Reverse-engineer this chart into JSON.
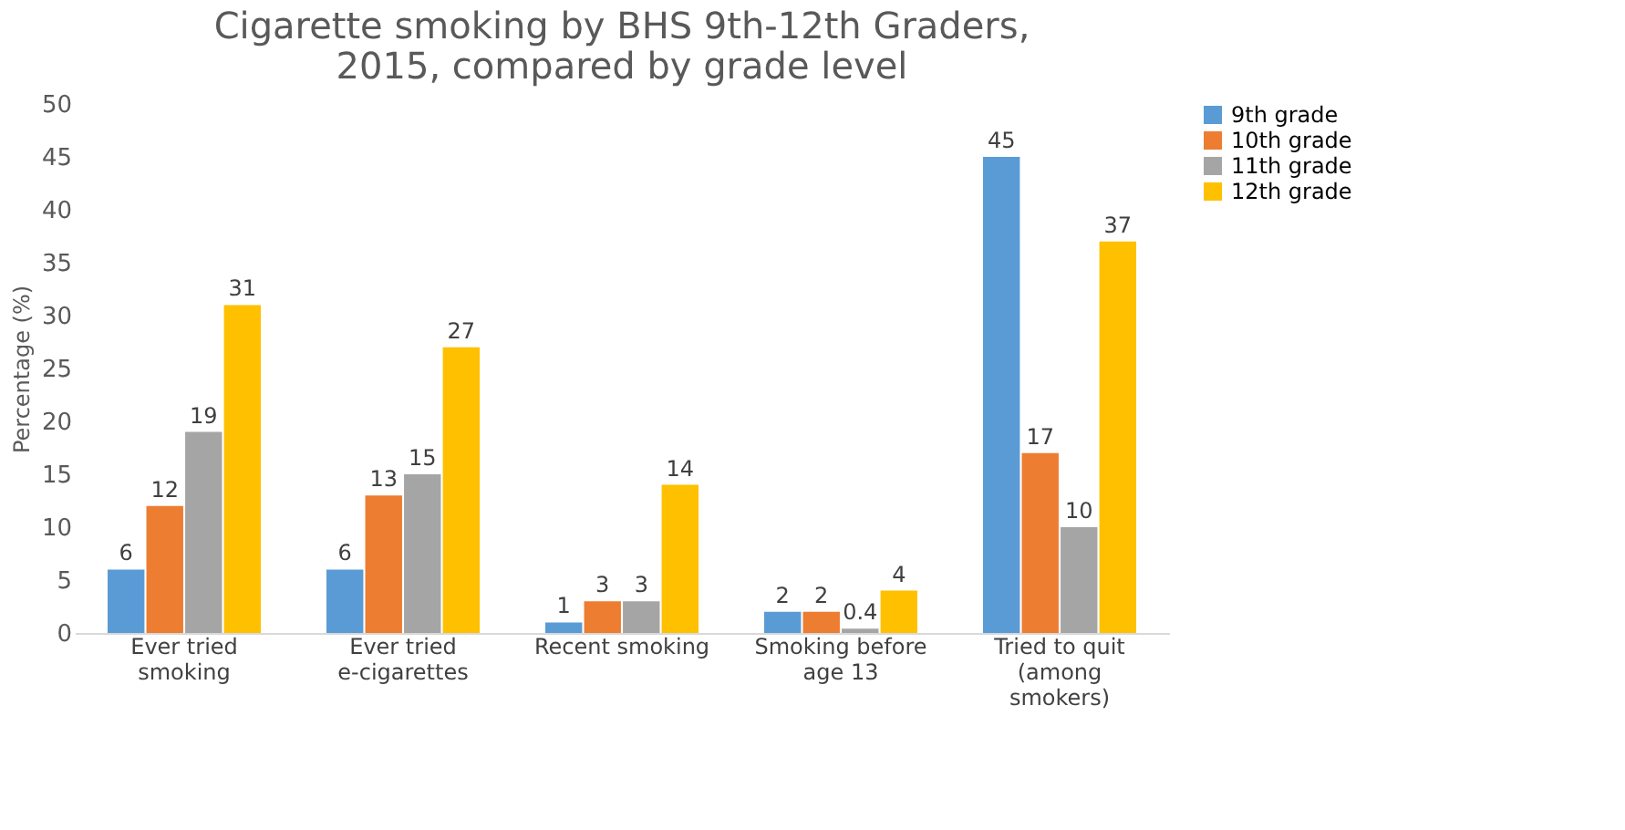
{
  "chart_data": {
    "type": "bar",
    "title": "Cigarette smoking by BHS 9th-12th Graders, 2015, compared by grade level",
    "ylabel": "Percentage (%)",
    "categories": [
      "Ever tried smoking",
      "Ever tried e-cigarettes",
      "Recent smoking",
      "Smoking before age 13",
      "Tried to quit (among smokers)"
    ],
    "series": [
      {
        "name": "9th grade",
        "color": "#5b9bd5",
        "values": [
          6,
          6,
          1,
          2,
          45
        ]
      },
      {
        "name": "10th grade",
        "color": "#ed7d31",
        "values": [
          12,
          13,
          3,
          2,
          17
        ]
      },
      {
        "name": "11th grade",
        "color": "#a5a5a5",
        "values": [
          19,
          15,
          3,
          0.4,
          10
        ]
      },
      {
        "name": "12th grade",
        "color": "#ffc000",
        "values": [
          31,
          27,
          14,
          4,
          37
        ]
      }
    ],
    "ylim": [
      0,
      50
    ],
    "yticks": [
      0,
      5,
      10,
      15,
      20,
      25,
      30,
      35,
      40,
      45,
      50
    ],
    "data_labels": true,
    "legend": "right",
    "grid": false
  }
}
